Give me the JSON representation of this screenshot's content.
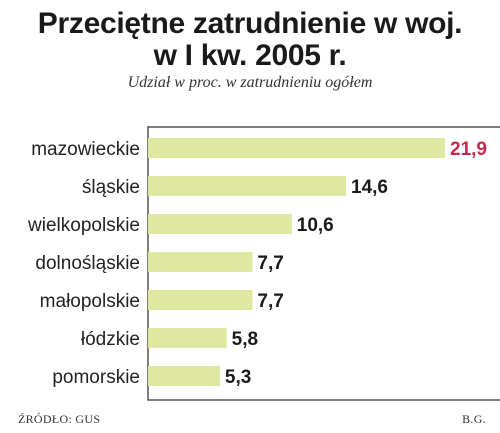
{
  "chart_data": {
    "type": "bar",
    "orientation": "horizontal",
    "title_lines": [
      "Przeciętne zatrudnienie w woj.",
      "w I kw. 2005 r."
    ],
    "subtitle": "Udział w proc. w zatrudnieniu ogółem",
    "categories": [
      "mazowieckie",
      "śląskie",
      "wielkopolskie",
      "dolnośląskie",
      "małopolskie",
      "łódzkie",
      "pomorskie"
    ],
    "values": [
      21.9,
      14.6,
      10.6,
      7.7,
      7.7,
      5.8,
      5.3
    ],
    "value_labels": [
      "21,9",
      "14,6",
      "10,6",
      "7,7",
      "7,7",
      "5,8",
      "5,3"
    ],
    "xlim": [
      0,
      21.9
    ],
    "grid": false,
    "bar_color": "#dfe8a0",
    "highlight_color": "#c8284a",
    "frame_color": "#555555"
  },
  "footer": {
    "source": "ŹRÓDŁO: GUS",
    "author": "B.G."
  }
}
